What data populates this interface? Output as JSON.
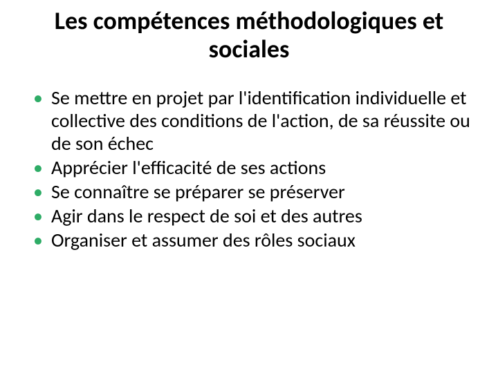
{
  "title": "Les compétences  méthodologiques et sociales",
  "title_color": "#000000",
  "title_fontsize": 36,
  "bullet_color": "#2eac66",
  "body_color": "#000000",
  "body_fontsize": 28,
  "items": [
    "Se mettre en projet par l'identification individuelle et collective des conditions de l'action, de sa réussite ou de son  échec",
    "Apprécier l'efficacité de ses actions",
    "Se connaître se préparer se préserver",
    "Agir dans le respect de soi et des autres",
    "Organiser et assumer des rôles sociaux"
  ]
}
